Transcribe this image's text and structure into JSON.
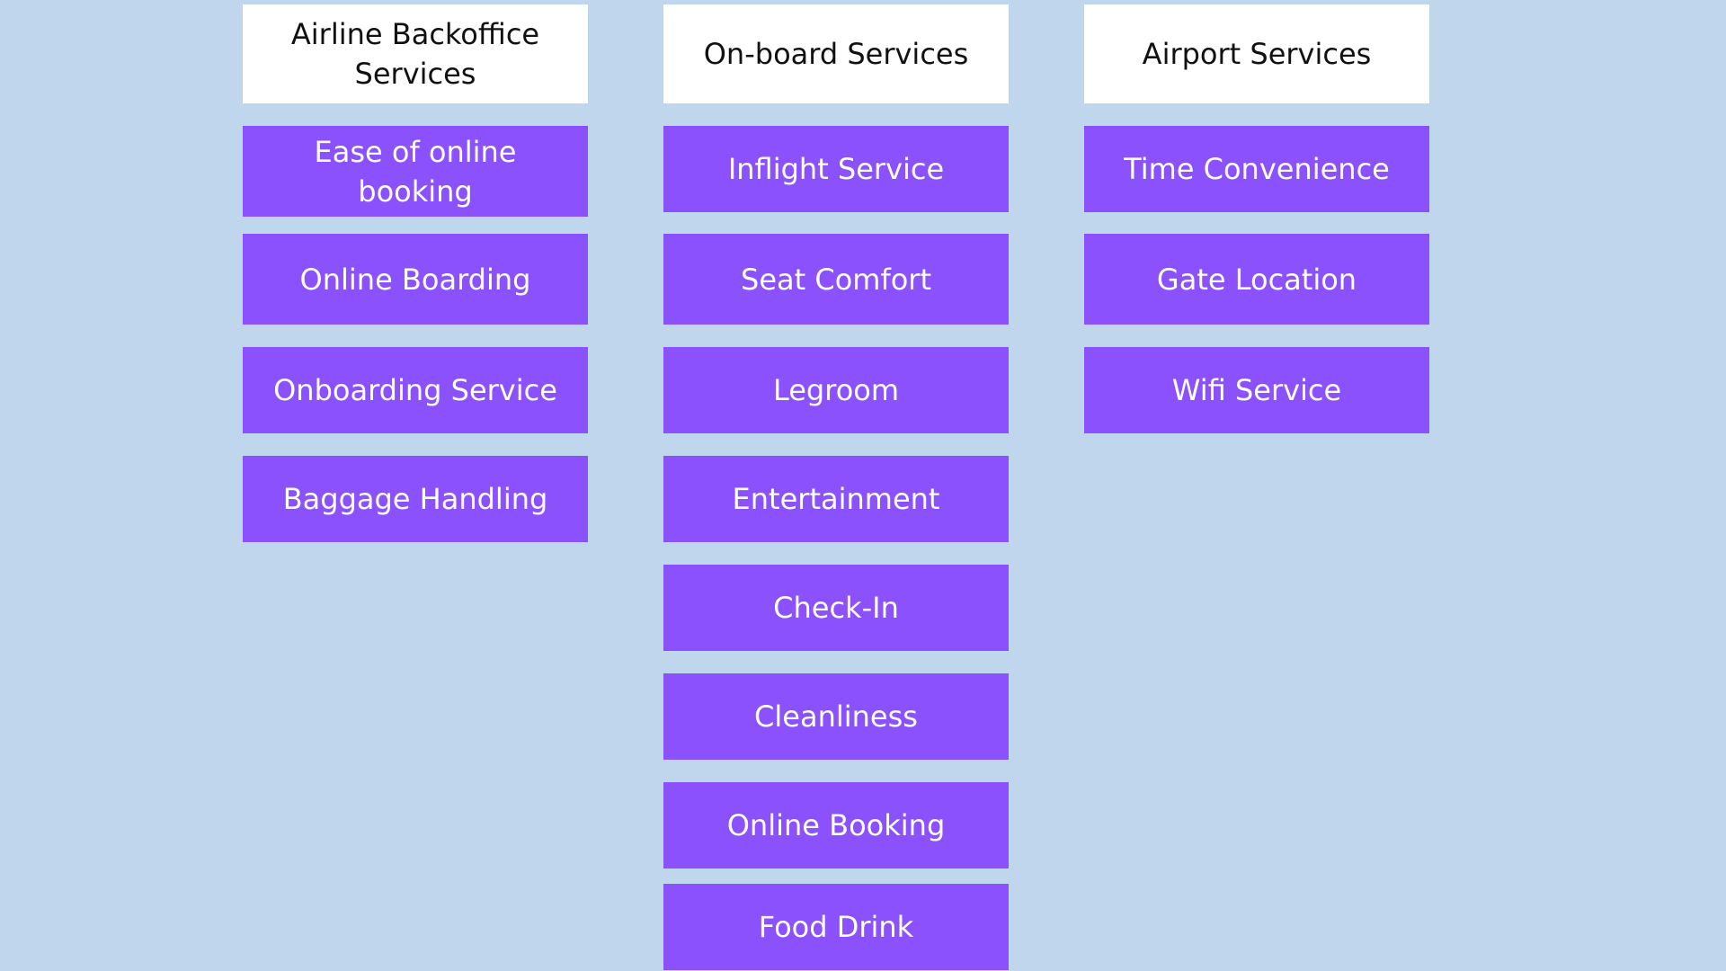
{
  "columns": [
    {
      "header": "Airline Backoffice Services",
      "items": [
        "Ease of online booking",
        "Online Boarding",
        "Onboarding Service",
        "Baggage Handling"
      ]
    },
    {
      "header": "On-board Services",
      "items": [
        "Inflight Service",
        "Seat Comfort",
        "Legroom",
        "Entertainment",
        "Check-In",
        "Cleanliness",
        "Online Booking",
        "Food Drink"
      ]
    },
    {
      "header": "Airport Services",
      "items": [
        "Time Convenience",
        "Gate Location",
        "Wifi Service"
      ]
    }
  ],
  "colors": {
    "background": "#bfd6ed",
    "header_box": "#ffffff",
    "item_box": "#8a51fd",
    "item_text": "#ffffff",
    "header_text": "#111111"
  }
}
